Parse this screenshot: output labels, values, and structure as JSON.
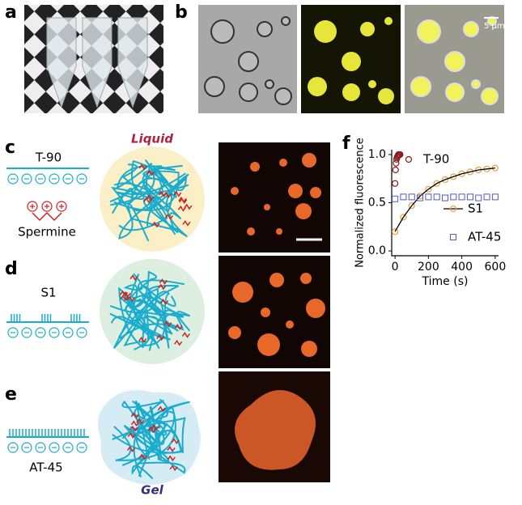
{
  "panels": {
    "a": {
      "label": "a"
    },
    "b": {
      "label": "b",
      "scale_bar": "5 µm"
    },
    "c": {
      "label": "c",
      "polymer": "T-90",
      "crosslinker": "Spermine",
      "state": "Liquid"
    },
    "d": {
      "label": "d",
      "polymer": "S1"
    },
    "e": {
      "label": "e",
      "polymer": "AT-45",
      "state": "Gel"
    },
    "f": {
      "label": "f"
    }
  },
  "chart_data": {
    "type": "scatter",
    "ylabel": "Normalized fluorescence",
    "xlabel": "Time (s)",
    "xlim": [
      -20,
      620
    ],
    "ylim": [
      -0.05,
      1.05
    ],
    "xticks": [
      0,
      200,
      400,
      600
    ],
    "yticks": [
      {
        "value": 0,
        "label": "0.0"
      },
      0.5,
      {
        "value": 1,
        "label": "1.0"
      }
    ],
    "series": [
      {
        "name": "T-90",
        "color": "#8b1a1a",
        "marker": "circle",
        "line": false,
        "x": [
          0,
          3,
          6,
          9,
          12,
          15,
          18,
          21,
          24,
          27,
          30
        ],
        "values": [
          0.7,
          0.84,
          0.91,
          0.95,
          0.97,
          0.98,
          0.99,
          1.0,
          1.0,
          1.0,
          1.0
        ]
      },
      {
        "name": "S1",
        "color": "#e8a040",
        "marker": "circle",
        "line": true,
        "x": [
          0,
          50,
          100,
          150,
          200,
          250,
          300,
          350,
          400,
          450,
          500,
          550,
          600
        ],
        "values": [
          0.2,
          0.35,
          0.47,
          0.57,
          0.64,
          0.7,
          0.74,
          0.77,
          0.8,
          0.82,
          0.84,
          0.85,
          0.86
        ]
      },
      {
        "name": "AT-45",
        "color": "#5555cc",
        "marker": "square",
        "line": false,
        "x": [
          0,
          50,
          100,
          150,
          200,
          250,
          300,
          350,
          400,
          450,
          500,
          550,
          600
        ],
        "values": [
          0.54,
          0.56,
          0.56,
          0.55,
          0.56,
          0.56,
          0.55,
          0.56,
          0.56,
          0.56,
          0.55,
          0.56,
          0.56
        ]
      }
    ]
  }
}
